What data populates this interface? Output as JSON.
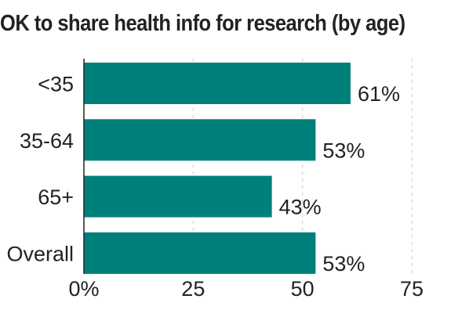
{
  "chart_data": {
    "type": "bar",
    "orientation": "horizontal",
    "title": "OK to share health info for research (by age)",
    "categories": [
      "<35",
      "35-64",
      "65+",
      "Overall"
    ],
    "values": [
      61,
      53,
      43,
      53
    ],
    "data_labels": [
      "61%",
      "53%",
      "43%",
      "53%"
    ],
    "xlim": [
      0,
      75
    ],
    "x_ticks": [
      0,
      25,
      50,
      75
    ],
    "x_tick_labels": [
      "0%",
      "25",
      "50",
      "75"
    ],
    "grid": "vertical dashed",
    "bar_color": "#00807a"
  }
}
